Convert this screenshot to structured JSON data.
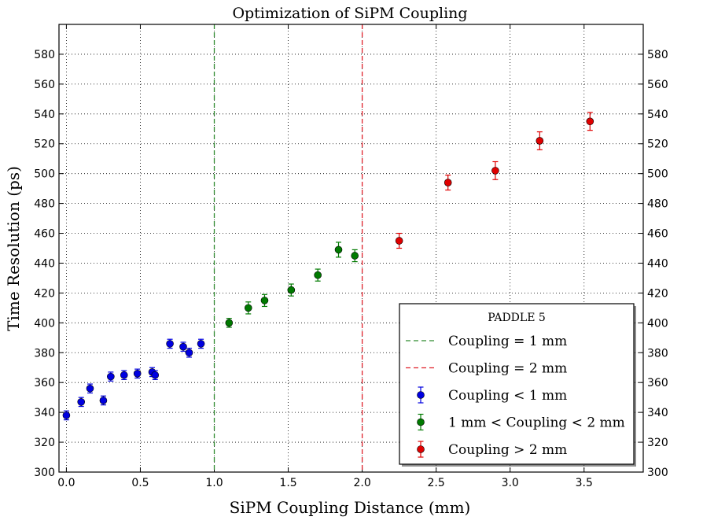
{
  "chart_data": {
    "type": "scatter",
    "title": "Optimization of SiPM Coupling",
    "xlabel": "SiPM Coupling Distance (mm)",
    "ylabel": "Time Resolution (ps)",
    "xlim": [
      -0.05,
      3.9
    ],
    "ylim": [
      300,
      600
    ],
    "xticks": [
      "0.0",
      "0.5",
      "1.0",
      "1.5",
      "2.0",
      "2.5",
      "3.0",
      "3.5"
    ],
    "yticks": [
      "300",
      "320",
      "340",
      "360",
      "380",
      "400",
      "420",
      "440",
      "460",
      "480",
      "500",
      "520",
      "540",
      "560",
      "580"
    ],
    "grid": true,
    "legend_placement": "lower-right",
    "legend_title": "PADDLE 5",
    "vlines": [
      {
        "x": 1.0,
        "label": "Coupling = 1 mm",
        "color": "#2e8b2e"
      },
      {
        "x": 2.0,
        "label": "Coupling = 2 mm",
        "color": "#e0202a"
      }
    ],
    "series": [
      {
        "name": "Coupling < 1 mm",
        "color": "#0000e0",
        "points": [
          {
            "x": 0.0,
            "y": 338,
            "err": 3
          },
          {
            "x": 0.1,
            "y": 347,
            "err": 3
          },
          {
            "x": 0.16,
            "y": 356,
            "err": 3
          },
          {
            "x": 0.25,
            "y": 348,
            "err": 3
          },
          {
            "x": 0.3,
            "y": 364,
            "err": 3
          },
          {
            "x": 0.39,
            "y": 365,
            "err": 3
          },
          {
            "x": 0.48,
            "y": 366,
            "err": 3
          },
          {
            "x": 0.58,
            "y": 367,
            "err": 3
          },
          {
            "x": 0.6,
            "y": 365,
            "err": 3
          },
          {
            "x": 0.7,
            "y": 386,
            "err": 3
          },
          {
            "x": 0.79,
            "y": 384,
            "err": 3
          },
          {
            "x": 0.83,
            "y": 380,
            "err": 3
          },
          {
            "x": 0.91,
            "y": 386,
            "err": 3
          }
        ]
      },
      {
        "name": "1 mm < Coupling < 2 mm",
        "color": "#007a00",
        "points": [
          {
            "x": 1.1,
            "y": 400,
            "err": 3
          },
          {
            "x": 1.23,
            "y": 410,
            "err": 4
          },
          {
            "x": 1.34,
            "y": 415,
            "err": 4
          },
          {
            "x": 1.52,
            "y": 422,
            "err": 4
          },
          {
            "x": 1.7,
            "y": 432,
            "err": 4
          },
          {
            "x": 1.84,
            "y": 449,
            "err": 5
          },
          {
            "x": 1.95,
            "y": 445,
            "err": 4
          }
        ]
      },
      {
        "name": "Coupling > 2 mm",
        "color": "#e00000",
        "points": [
          {
            "x": 2.25,
            "y": 455,
            "err": 5
          },
          {
            "x": 2.58,
            "y": 494,
            "err": 5
          },
          {
            "x": 2.9,
            "y": 502,
            "err": 6
          },
          {
            "x": 3.2,
            "y": 522,
            "err": 6
          },
          {
            "x": 3.54,
            "y": 535,
            "err": 6
          }
        ]
      }
    ]
  }
}
